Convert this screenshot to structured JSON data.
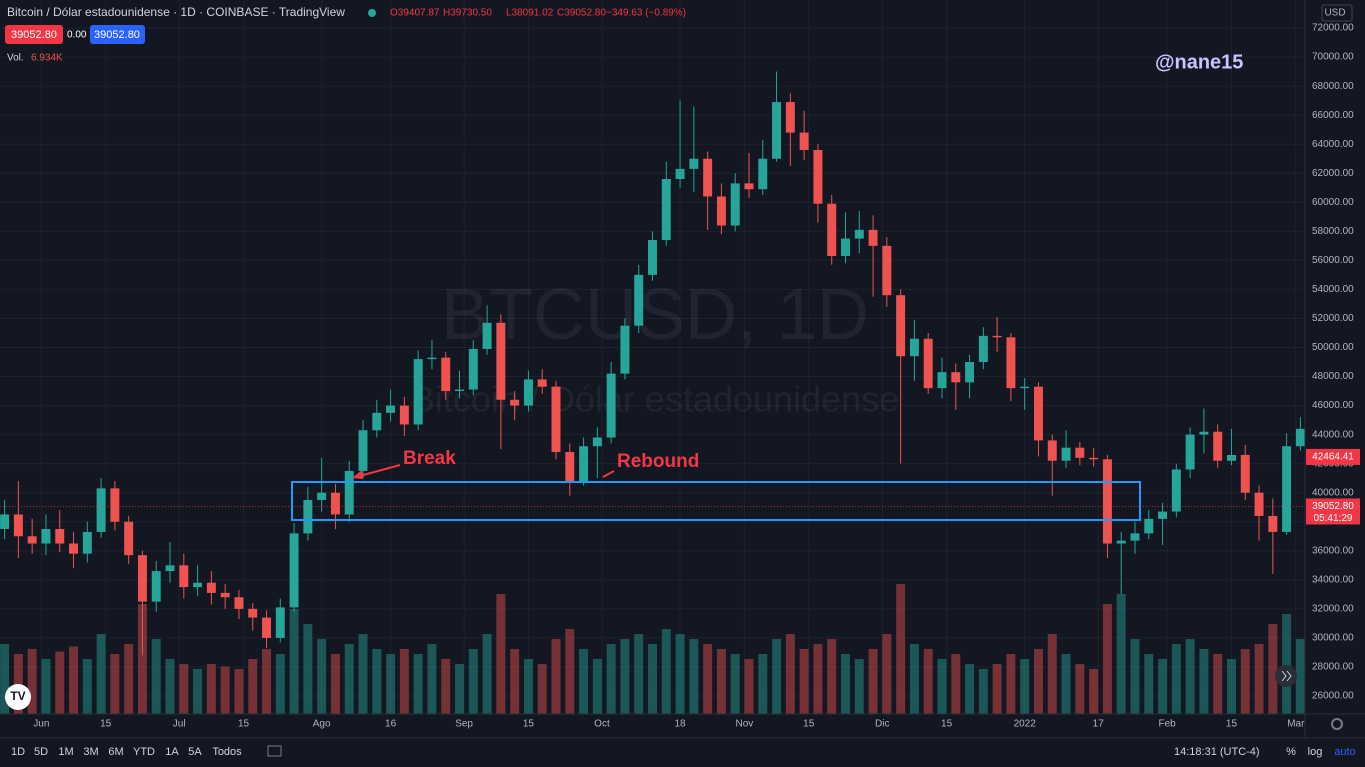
{
  "header": {
    "symbol": "Bitcoin / Dólar estadounidense · 1D · COINBASE · TradingView",
    "ohlc": [
      "O39407.87",
      "H39730.50",
      "L38091.02",
      "C39052.80",
      "−349.63 (−0.89%)"
    ],
    "sell": "39052.80",
    "spread": "0.00",
    "buy": "39052.80",
    "volume_title": "Vol.",
    "volume_value": "6.934K",
    "currency": "USD",
    "author": "@nane15"
  },
  "watermark": {
    "symbol": "BTCUSD, 1D",
    "name": "Bitcoin / Dólar estadounidense"
  },
  "chart_data": {
    "type": "candlestick",
    "annotations": [
      "Break",
      "Rebound"
    ],
    "up_color": "#26a69a",
    "down_color": "#ef5350",
    "grid": true,
    "x": [
      -8,
      -5,
      -2,
      1,
      4,
      7,
      10,
      13,
      16,
      19,
      22,
      25,
      28,
      31,
      34,
      37,
      40,
      43,
      46,
      49,
      52,
      55,
      58,
      61,
      64,
      67,
      70,
      73,
      76,
      79,
      82,
      85,
      88,
      91,
      94,
      97,
      100,
      103,
      106,
      109,
      112,
      115,
      118,
      121,
      124,
      127,
      130,
      133,
      136,
      139,
      142,
      145,
      148,
      151,
      154,
      157,
      160,
      163,
      166,
      169,
      172,
      175,
      178,
      181,
      184,
      187,
      190,
      193,
      196,
      199,
      202,
      205,
      208,
      211,
      214,
      217,
      220,
      223,
      226,
      229,
      232,
      235,
      238,
      241,
      244,
      247,
      250,
      253,
      256,
      259,
      262,
      265,
      268,
      271,
      274
    ],
    "open": [
      37500,
      38500,
      37000,
      36500,
      37500,
      36500,
      35800,
      37300,
      40300,
      38000,
      35700,
      32500,
      34600,
      35000,
      33500,
      33800,
      33100,
      32800,
      32000,
      31400,
      30000,
      32100,
      37200,
      39500,
      40000,
      38500,
      41500,
      44300,
      45500,
      46000,
      44700,
      49200,
      49300,
      47000,
      47100,
      49900,
      51700,
      46400,
      46000,
      47800,
      47300,
      42800,
      40700,
      43200,
      43800,
      48200,
      51500,
      55000,
      57400,
      61600,
      62300,
      63000,
      60400,
      58400,
      61300,
      60900,
      63000,
      66900,
      64800,
      63600,
      59900,
      56300,
      57500,
      58100,
      57000,
      53600,
      49400,
      50600,
      47200,
      48300,
      47600,
      49000,
      50800,
      50700,
      47200,
      47300,
      43600,
      42200,
      43100,
      42400,
      42300,
      36500,
      36700,
      37200,
      38200,
      38700,
      41600,
      44000,
      44200,
      42200,
      42600,
      40000,
      38400,
      37300,
      43200
    ],
    "high": [
      39500,
      40800,
      38200,
      38500,
      38800,
      37300,
      38000,
      41000,
      40800,
      38400,
      36000,
      35300,
      36600,
      35800,
      35000,
      34600,
      33700,
      33300,
      32400,
      31900,
      32700,
      37900,
      40400,
      42400,
      40600,
      42200,
      45000,
      46400,
      47100,
      46600,
      49800,
      50500,
      49700,
      48400,
      50500,
      52900,
      52300,
      47000,
      48400,
      48500,
      47700,
      43400,
      43800,
      44500,
      49000,
      52000,
      55700,
      58000,
      62800,
      67000,
      66600,
      63500,
      61300,
      62000,
      63400,
      64300,
      69000,
      67500,
      66300,
      64000,
      60500,
      59300,
      59400,
      59100,
      57600,
      54000,
      51900,
      51000,
      49300,
      48900,
      49500,
      51400,
      52100,
      51000,
      47900,
      47600,
      44000,
      44300,
      43500,
      43100,
      42600,
      37300,
      38000,
      38800,
      39300,
      42000,
      44500,
      45800,
      44700,
      44400,
      43300,
      40500,
      39600,
      44100,
      45200
    ],
    "low": [
      36800,
      35500,
      35800,
      35700,
      35900,
      34800,
      35200,
      36900,
      37400,
      35100,
      28800,
      31800,
      33800,
      32700,
      32900,
      32300,
      32000,
      31300,
      30500,
      29300,
      29700,
      31800,
      36700,
      38700,
      37500,
      38000,
      41000,
      43800,
      44900,
      43900,
      44300,
      48500,
      46400,
      46500,
      46700,
      49500,
      43000,
      45000,
      45600,
      46800,
      42300,
      39800,
      40500,
      41000,
      43400,
      47800,
      51000,
      54600,
      57000,
      61000,
      60700,
      58100,
      57800,
      58000,
      60300,
      60500,
      62800,
      62500,
      62900,
      58600,
      55700,
      55800,
      56500,
      53500,
      52800,
      42000,
      47700,
      46800,
      46500,
      45700,
      46500,
      48500,
      49700,
      46300,
      45700,
      42500,
      39800,
      41700,
      41900,
      41800,
      35500,
      33000,
      35800,
      36800,
      36400,
      38300,
      41000,
      42700,
      41700,
      41900,
      39500,
      36700,
      34400,
      37100,
      42900
    ],
    "close": [
      38500,
      37000,
      36500,
      37500,
      36500,
      35800,
      37300,
      40300,
      38000,
      35700,
      32500,
      34600,
      35000,
      33500,
      33800,
      33100,
      32800,
      32000,
      31400,
      30000,
      32100,
      37200,
      39500,
      40000,
      38500,
      41500,
      44300,
      45500,
      46000,
      44700,
      49200,
      49300,
      47000,
      47100,
      49900,
      51700,
      46400,
      46000,
      47800,
      47300,
      42800,
      40700,
      43200,
      43800,
      48200,
      51500,
      55000,
      57400,
      61600,
      62300,
      63000,
      60400,
      58400,
      61300,
      60900,
      63000,
      66900,
      64800,
      63600,
      59900,
      56300,
      57500,
      58100,
      57000,
      53600,
      49400,
      50600,
      47200,
      48300,
      47600,
      49000,
      50800,
      50700,
      47200,
      47300,
      43600,
      42200,
      43100,
      42400,
      42300,
      36500,
      36700,
      37200,
      38200,
      38700,
      41600,
      44000,
      44200,
      42200,
      42600,
      40000,
      38400,
      37300,
      43200,
      44400
    ],
    "volume": [
      14000,
      12000,
      13000,
      11000,
      12500,
      13500,
      11000,
      16000,
      12000,
      14000,
      22000,
      15000,
      11000,
      10000,
      9000,
      10000,
      9500,
      9000,
      11000,
      13000,
      12000,
      21000,
      18000,
      15000,
      12000,
      14000,
      16000,
      13000,
      12000,
      13000,
      12000,
      14000,
      11000,
      10000,
      13000,
      16000,
      24000,
      13000,
      11000,
      10000,
      15000,
      17000,
      13000,
      11000,
      14000,
      15000,
      16000,
      14000,
      17000,
      16000,
      15000,
      14000,
      13000,
      12000,
      11000,
      12000,
      15000,
      16000,
      13000,
      14000,
      15000,
      12000,
      11000,
      13000,
      16000,
      26000,
      14000,
      13000,
      11000,
      12000,
      10000,
      9000,
      10000,
      12000,
      11000,
      13000,
      16000,
      12000,
      10000,
      9000,
      22000,
      24000,
      15000,
      12000,
      11000,
      14000,
      15000,
      13000,
      12000,
      11000,
      13000,
      14000,
      18000,
      20000,
      15000
    ],
    "xlim": [
      -9,
      275
    ],
    "xticks": [
      {
        "value": 0,
        "label": "Jun"
      },
      {
        "value": 14,
        "label": "15"
      },
      {
        "value": 30,
        "label": "Jul"
      },
      {
        "value": 44,
        "label": "15"
      },
      {
        "value": 61,
        "label": "Ago"
      },
      {
        "value": 76,
        "label": "16"
      },
      {
        "value": 92,
        "label": "Sep"
      },
      {
        "value": 106,
        "label": "15"
      },
      {
        "value": 122,
        "label": "Oct"
      },
      {
        "value": 139,
        "label": "18"
      },
      {
        "value": 153,
        "label": "Nov"
      },
      {
        "value": 167,
        "label": "15"
      },
      {
        "value": 183,
        "label": "Dic"
      },
      {
        "value": 197,
        "label": "15"
      },
      {
        "value": 214,
        "label": "2022"
      },
      {
        "value": 230,
        "label": "17"
      },
      {
        "value": 245,
        "label": "Feb"
      },
      {
        "value": 259,
        "label": "15"
      },
      {
        "value": 273,
        "label": "Mar"
      }
    ],
    "ylim": [
      24760,
      73930
    ],
    "yticks": [
      {
        "value": 26000,
        "label": "26000.00"
      },
      {
        "value": 28000,
        "label": "28000.00"
      },
      {
        "value": 30000,
        "label": "30000.00"
      },
      {
        "value": 32000,
        "label": "32000.00"
      },
      {
        "value": 34000,
        "label": "34000.00"
      },
      {
        "value": 36000,
        "label": "36000.00"
      },
      {
        "value": 38000,
        "label": "38000.00"
      },
      {
        "value": 40000,
        "label": "40000.00"
      },
      {
        "value": 42000,
        "label": "42000.00"
      },
      {
        "value": 44000,
        "label": "44000.00"
      },
      {
        "value": 46000,
        "label": "46000.00"
      },
      {
        "value": 48000,
        "label": "48000.00"
      },
      {
        "value": 50000,
        "label": "50000.00"
      },
      {
        "value": 52000,
        "label": "52000.00"
      },
      {
        "value": 54000,
        "label": "54000.00"
      },
      {
        "value": 56000,
        "label": "56000.00"
      },
      {
        "value": 58000,
        "label": "58000.00"
      },
      {
        "value": 60000,
        "label": "60000.00"
      },
      {
        "value": 62000,
        "label": "62000.00"
      },
      {
        "value": 64000,
        "label": "64000.00"
      },
      {
        "value": 66000,
        "label": "66000.00"
      },
      {
        "value": 68000,
        "label": "68000.00"
      },
      {
        "value": 70000,
        "label": "70000.00"
      },
      {
        "value": 72000,
        "label": "72000.00"
      }
    ],
    "price_labels": [
      {
        "value": 42464.41,
        "label": "42464.41",
        "color": "#f23645"
      },
      {
        "value": 39052.8,
        "label": "39052.80",
        "color": "#f23645",
        "countdown": "05:41:29"
      }
    ]
  },
  "toolbar": {
    "ranges": [
      "1D",
      "5D",
      "1M",
      "3M",
      "6M",
      "YTD",
      "1A",
      "5A",
      "Todos"
    ],
    "time": "14:18:31 (UTC-4)",
    "options": [
      "%",
      "log",
      "auto"
    ]
  }
}
